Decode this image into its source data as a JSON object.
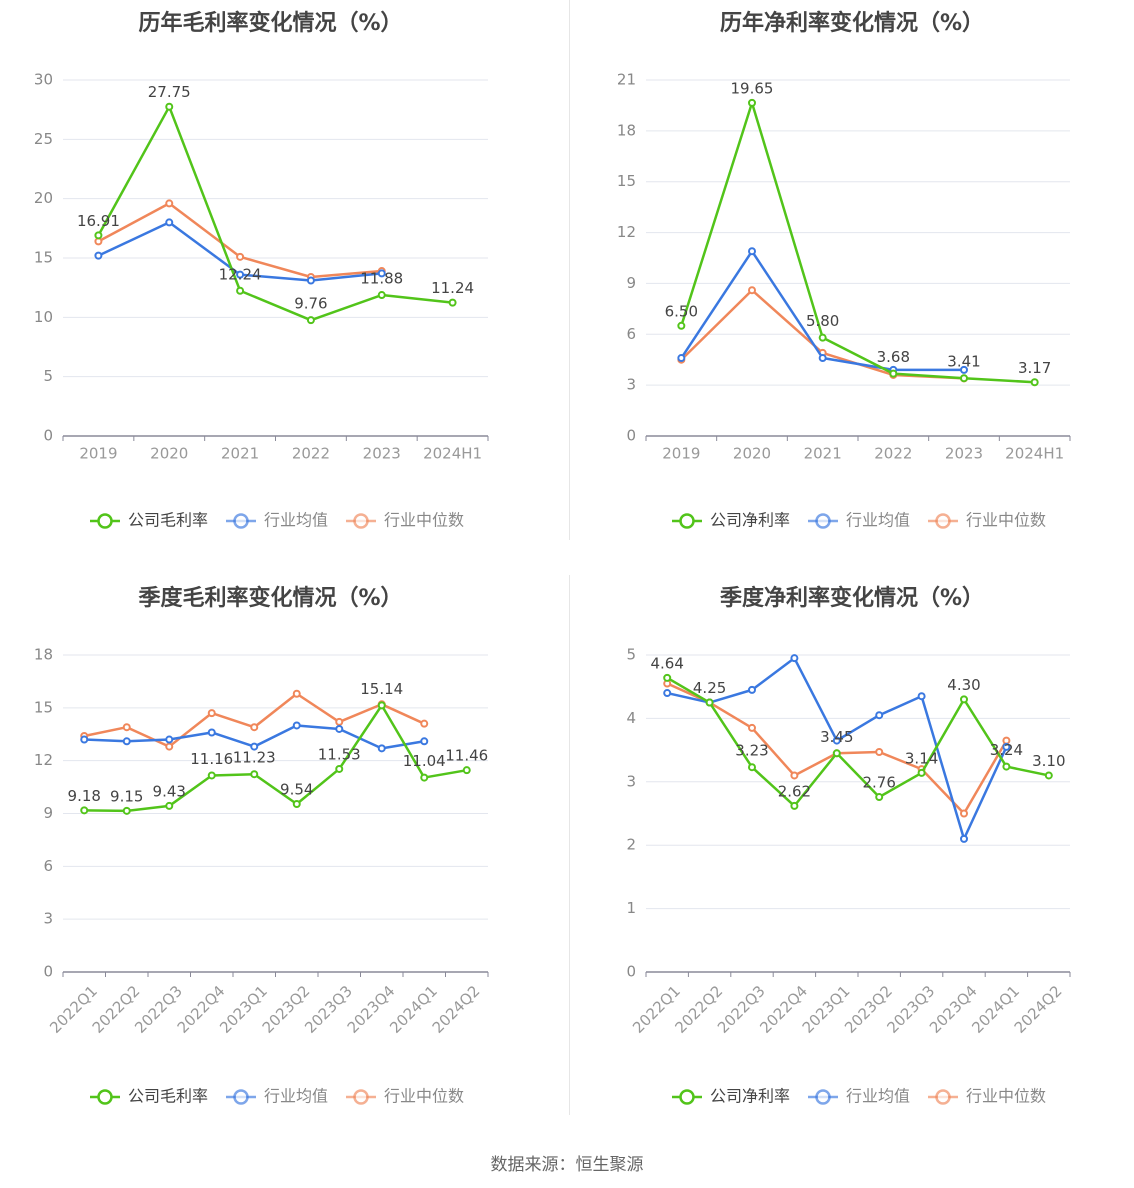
{
  "footer": "数据来源：恒生聚源",
  "colors": {
    "company": "#52c41a",
    "avg": "#3a78e0",
    "median": "#f0875a"
  },
  "chart_data": [
    {
      "type": "line",
      "title": "历年毛利率变化情况（%）",
      "categories": [
        "2019",
        "2020",
        "2021",
        "2022",
        "2023",
        "2024H1"
      ],
      "ylim": [
        0,
        30
      ],
      "yticks": [
        0,
        5,
        10,
        15,
        20,
        25,
        30
      ],
      "ytick_labels": [
        "0",
        "5",
        "10",
        "15",
        "20",
        "25",
        "30"
      ],
      "grid": true,
      "legend_position": "bottom",
      "series": [
        {
          "name": "公司毛利率",
          "values": [
            16.91,
            27.75,
            12.24,
            9.76,
            11.88,
            11.24
          ],
          "labels": [
            "16.91",
            "27.75",
            "12.24",
            "9.76",
            "11.88",
            "11.24"
          ]
        },
        {
          "name": "行业均值",
          "values": [
            15.2,
            18.0,
            13.6,
            13.1,
            13.7,
            null
          ]
        },
        {
          "name": "行业中位数",
          "values": [
            16.4,
            19.6,
            15.1,
            13.4,
            13.9,
            null
          ]
        }
      ]
    },
    {
      "type": "line",
      "title": "历年净利率变化情况（%）",
      "categories": [
        "2019",
        "2020",
        "2021",
        "2022",
        "2023",
        "2024H1"
      ],
      "ylim": [
        0,
        21
      ],
      "yticks": [
        0,
        3,
        6,
        9,
        12,
        15,
        18,
        21
      ],
      "ytick_labels": [
        "0",
        "3",
        "6",
        "9",
        "12",
        "15",
        "18",
        "21"
      ],
      "grid": true,
      "legend_position": "bottom",
      "series": [
        {
          "name": "公司净利率",
          "values": [
            6.5,
            19.65,
            5.8,
            3.68,
            3.41,
            3.17
          ],
          "labels": [
            "6.50",
            "19.65",
            "5.80",
            "3.68",
            "3.41",
            "3.17"
          ]
        },
        {
          "name": "行业均值",
          "values": [
            4.6,
            10.9,
            4.6,
            3.9,
            3.9,
            null
          ]
        },
        {
          "name": "行业中位数",
          "values": [
            4.5,
            8.6,
            4.9,
            3.6,
            3.4,
            null
          ]
        }
      ]
    },
    {
      "type": "line",
      "title": "季度毛利率变化情况（%）",
      "categories": [
        "2022Q1",
        "2022Q2",
        "2022Q3",
        "2022Q4",
        "2023Q1",
        "2023Q2",
        "2023Q3",
        "2023Q4",
        "2024Q1",
        "2024Q2"
      ],
      "ylim": [
        0,
        18
      ],
      "yticks": [
        0,
        3,
        6,
        9,
        12,
        15,
        18
      ],
      "ytick_labels": [
        "0",
        "3",
        "6",
        "9",
        "12",
        "15",
        "18"
      ],
      "grid": true,
      "legend_position": "bottom",
      "series": [
        {
          "name": "公司毛利率",
          "values": [
            9.18,
            9.15,
            9.43,
            11.16,
            11.23,
            9.54,
            11.53,
            15.14,
            11.04,
            11.46
          ],
          "labels": [
            "9.18",
            "9.15",
            "9.43",
            "11.16",
            "11.23",
            "9.54",
            "11.53",
            "15.14",
            "11.04",
            "11.46"
          ]
        },
        {
          "name": "行业均值",
          "values": [
            13.2,
            13.1,
            13.2,
            13.6,
            12.8,
            14.0,
            13.8,
            12.7,
            13.1,
            null
          ]
        },
        {
          "name": "行业中位数",
          "values": [
            13.4,
            13.9,
            12.8,
            14.7,
            13.9,
            15.8,
            14.2,
            15.2,
            14.1,
            null
          ]
        }
      ]
    },
    {
      "type": "line",
      "title": "季度净利率变化情况（%）",
      "categories": [
        "2022Q1",
        "2022Q2",
        "2022Q3",
        "2022Q4",
        "2023Q1",
        "2023Q2",
        "2023Q3",
        "2023Q4",
        "2024Q1",
        "2024Q2"
      ],
      "ylim": [
        0,
        5
      ],
      "yticks": [
        0,
        1,
        2,
        3,
        4,
        5
      ],
      "ytick_labels": [
        "0",
        "1",
        "2",
        "3",
        "4",
        "5"
      ],
      "grid": true,
      "legend_position": "bottom",
      "series": [
        {
          "name": "公司净利率",
          "values": [
            4.64,
            4.25,
            3.23,
            2.62,
            3.45,
            2.76,
            3.14,
            4.3,
            3.24,
            3.1
          ],
          "labels": [
            "4.64",
            "4.25",
            "3.23",
            "2.62",
            "3.45",
            "2.76",
            "3.14",
            "4.30",
            "3.24",
            "3.10"
          ]
        },
        {
          "name": "行业均值",
          "values": [
            4.4,
            4.25,
            4.45,
            4.95,
            3.65,
            4.05,
            4.35,
            2.1,
            3.55,
            null
          ]
        },
        {
          "name": "行业中位数",
          "values": [
            4.55,
            4.25,
            3.85,
            3.1,
            3.45,
            3.47,
            3.2,
            2.5,
            3.65,
            null
          ]
        }
      ]
    }
  ]
}
